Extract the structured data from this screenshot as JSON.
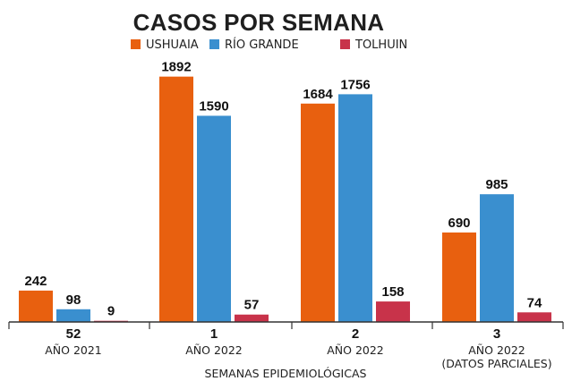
{
  "chart_data": {
    "type": "bar",
    "title": "CASOS POR SEMANA",
    "xlabel": "SEMANAS EPIDEMIOLÓGICAS",
    "ylabel": "",
    "ylim": [
      0,
      2000
    ],
    "legend_position": "top",
    "groups": [
      {
        "week": "52",
        "year": "AÑO 2021"
      },
      {
        "week": "1",
        "year": "AÑO 2022"
      },
      {
        "week": "2",
        "year": "AÑO 2022"
      },
      {
        "week": "3",
        "year": "AÑO 2022",
        "note": "(DATOS PARCIALES)"
      }
    ],
    "series": [
      {
        "name": "USHUAIA",
        "color": "#e8600f",
        "values": [
          242,
          1892,
          1684,
          690
        ]
      },
      {
        "name": "RÍO GRANDE",
        "color": "#3a8fcf",
        "values": [
          98,
          1590,
          1756,
          985
        ]
      },
      {
        "name": "TOLHUIN",
        "color": "#c8334a",
        "values": [
          9,
          57,
          158,
          74
        ]
      }
    ]
  }
}
